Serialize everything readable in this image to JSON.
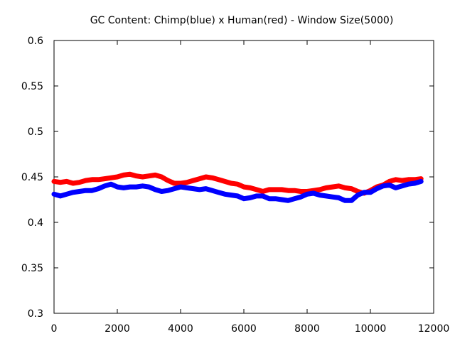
{
  "chart_data": {
    "type": "line",
    "title": "GC Content: Chimp(blue) x Human(red) - Window Size(5000)",
    "xlabel": "",
    "ylabel": "",
    "xlim": [
      0,
      12000
    ],
    "ylim": [
      0.3,
      0.6
    ],
    "x_ticks": [
      0,
      2000,
      4000,
      6000,
      8000,
      10000,
      12000
    ],
    "x_tick_labels": [
      "0",
      "2000",
      "4000",
      "6000",
      "8000",
      "10000",
      "12000"
    ],
    "y_ticks": [
      0.3,
      0.35,
      0.4,
      0.45,
      0.5,
      0.55,
      0.6
    ],
    "y_tick_labels": [
      "0.3",
      "0.35",
      "0.4",
      "0.45",
      "0.5",
      "0.55",
      "0.6"
    ],
    "grid": false,
    "legend": "none",
    "series": [
      {
        "color": "#ff0000",
        "x": [
          0,
          200,
          400,
          600,
          800,
          1000,
          1200,
          1400,
          1600,
          1800,
          2000,
          2200,
          2400,
          2600,
          2800,
          3000,
          3200,
          3400,
          3600,
          3800,
          4000,
          4200,
          4400,
          4600,
          4800,
          5000,
          5200,
          5400,
          5600,
          5800,
          6000,
          6200,
          6400,
          6600,
          6800,
          7000,
          7200,
          7400,
          7600,
          7800,
          8000,
          8200,
          8400,
          8600,
          8800,
          9000,
          9200,
          9400,
          9600,
          9800,
          10000,
          10200,
          10400,
          10600,
          10800,
          11000,
          11200,
          11400,
          11600
        ],
        "values": [
          0.445,
          0.444,
          0.445,
          0.443,
          0.444,
          0.446,
          0.447,
          0.447,
          0.448,
          0.449,
          0.45,
          0.452,
          0.453,
          0.451,
          0.45,
          0.451,
          0.452,
          0.45,
          0.446,
          0.443,
          0.443,
          0.444,
          0.446,
          0.448,
          0.45,
          0.449,
          0.447,
          0.445,
          0.443,
          0.442,
          0.439,
          0.438,
          0.436,
          0.434,
          0.436,
          0.436,
          0.436,
          0.435,
          0.435,
          0.434,
          0.434,
          0.435,
          0.436,
          0.438,
          0.439,
          0.44,
          0.438,
          0.437,
          0.434,
          0.432,
          0.435,
          0.439,
          0.441,
          0.445,
          0.447,
          0.446,
          0.447,
          0.447,
          0.448
        ]
      },
      {
        "color": "#0000ff",
        "x": [
          0,
          200,
          400,
          600,
          800,
          1000,
          1200,
          1400,
          1600,
          1800,
          2000,
          2200,
          2400,
          2600,
          2800,
          3000,
          3200,
          3400,
          3600,
          3800,
          4000,
          4200,
          4400,
          4600,
          4800,
          5000,
          5200,
          5400,
          5600,
          5800,
          6000,
          6200,
          6400,
          6600,
          6800,
          7000,
          7200,
          7400,
          7600,
          7800,
          8000,
          8200,
          8400,
          8600,
          8800,
          9000,
          9200,
          9400,
          9600,
          9800,
          10000,
          10200,
          10400,
          10600,
          10800,
          11000,
          11200,
          11400,
          11600
        ],
        "values": [
          0.431,
          0.429,
          0.431,
          0.433,
          0.434,
          0.435,
          0.435,
          0.437,
          0.44,
          0.442,
          0.439,
          0.438,
          0.439,
          0.439,
          0.44,
          0.439,
          0.436,
          0.434,
          0.435,
          0.437,
          0.439,
          0.438,
          0.437,
          0.436,
          0.437,
          0.435,
          0.433,
          0.431,
          0.43,
          0.429,
          0.426,
          0.427,
          0.429,
          0.429,
          0.426,
          0.426,
          0.425,
          0.424,
          0.426,
          0.428,
          0.431,
          0.432,
          0.43,
          0.429,
          0.428,
          0.427,
          0.424,
          0.424,
          0.43,
          0.433,
          0.433,
          0.437,
          0.44,
          0.441,
          0.438,
          0.44,
          0.442,
          0.443,
          0.445
        ]
      }
    ]
  }
}
